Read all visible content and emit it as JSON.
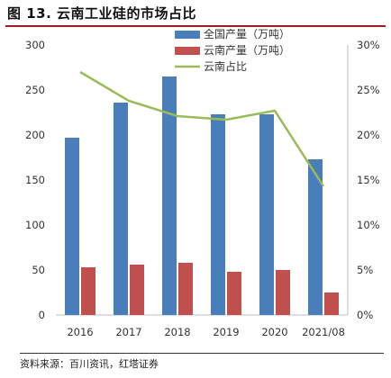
{
  "figure": {
    "title": "图 13. 云南工业硅的市场占比",
    "source": "资料来源：百川资讯，红塔证券"
  },
  "chart_data": {
    "type": "bar",
    "categories": [
      "2016",
      "2017",
      "2018",
      "2019",
      "2020",
      "2021/08"
    ],
    "series": [
      {
        "name": "全国产量（万吨）",
        "kind": "bar",
        "axis": "left",
        "color": "#4a7ebb",
        "values": [
          197,
          236,
          265,
          223,
          223,
          173
        ]
      },
      {
        "name": "云南产量（万吨）",
        "kind": "bar",
        "axis": "left",
        "color": "#c0504d",
        "values": [
          53,
          56,
          58,
          48,
          50,
          25
        ]
      },
      {
        "name": "云南占比",
        "kind": "line",
        "axis": "right",
        "color": "#9bbb59",
        "values": [
          0.27,
          0.238,
          0.221,
          0.217,
          0.227,
          0.143
        ]
      }
    ],
    "ylim_left": [
      0,
      300
    ],
    "yticks_left": [
      "0",
      "50",
      "100",
      "150",
      "200",
      "250",
      "300"
    ],
    "ylim_right": [
      0,
      0.3
    ],
    "yticks_right": [
      "0%",
      "5%",
      "10%",
      "15%",
      "20%",
      "25%",
      "30%"
    ],
    "grid": false,
    "legend": "top-center"
  }
}
